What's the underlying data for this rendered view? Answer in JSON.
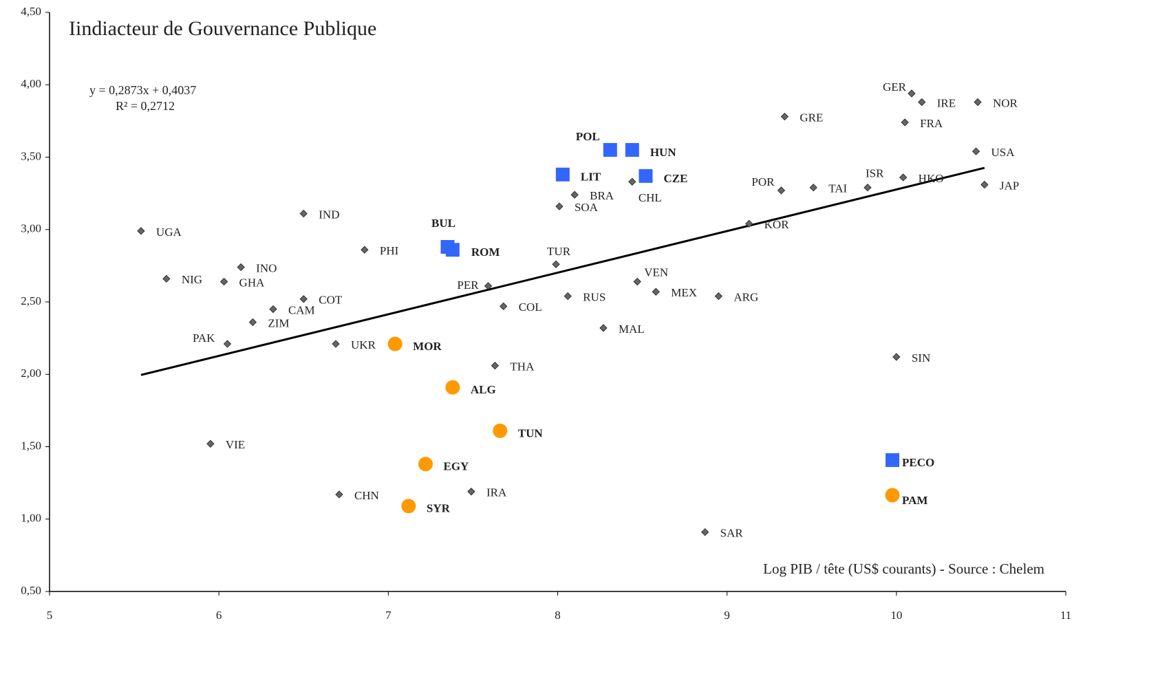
{
  "chart_data": {
    "type": "scatter",
    "title": "Iindiacteur de Gouvernance Publique",
    "x_label": "Log PIB / tête (US$ courants) - Source : Chelem",
    "annotation": [
      "y = 0,2873x + 0,4037",
      "R² = 0,2712"
    ],
    "trendline": {
      "slope": 0.2873,
      "intercept": 0.4037,
      "color": "#000000"
    },
    "xlim": [
      5,
      11
    ],
    "xticks": [
      5,
      6,
      7,
      8,
      9,
      10,
      11
    ],
    "ylim": [
      0.5,
      4.5
    ],
    "yticks": [
      {
        "value": 0.5,
        "label": "0,50"
      },
      {
        "value": 1.0,
        "label": "1,00"
      },
      {
        "value": 1.5,
        "label": "1,50"
      },
      {
        "value": 2.0,
        "label": "2,00"
      },
      {
        "value": 2.5,
        "label": "2,50"
      },
      {
        "value": 3.0,
        "label": "3,00"
      },
      {
        "value": 3.5,
        "label": "3,50"
      },
      {
        "value": 4.0,
        "label": "4,00"
      },
      {
        "value": 4.5,
        "label": "4,50"
      }
    ],
    "grid": false,
    "legend": "lower right",
    "series": [
      {
        "marker": "diamond",
        "color": "#666666",
        "labels": [
          "UGA",
          "NIG",
          "GHA",
          "INO",
          "CAM",
          "COT",
          "ZIM",
          "PAK",
          "IND",
          "PHI",
          "UKR",
          "VIE",
          "CHN",
          "IRA",
          "PER",
          "COL",
          "THA",
          "TUR",
          "SOA",
          "BRA",
          "RUS",
          "MAL",
          "CHL",
          "VEN",
          "MEX",
          "ARG",
          "SAR",
          "KOR",
          "POR",
          "GRE",
          "TAI",
          "ISR",
          "HKO",
          "GER",
          "IRE",
          "FRA",
          "NOR",
          "USA",
          "JAP",
          "SIN"
        ],
        "x": [
          5.54,
          5.69,
          6.03,
          6.13,
          6.32,
          6.5,
          6.2,
          6.05,
          6.5,
          6.86,
          6.69,
          5.95,
          6.71,
          7.49,
          7.59,
          7.68,
          7.63,
          7.99,
          8.01,
          8.1,
          8.06,
          8.27,
          8.44,
          8.47,
          8.58,
          8.95,
          8.87,
          9.13,
          9.32,
          9.34,
          9.51,
          9.83,
          10.04,
          10.09,
          10.15,
          10.05,
          10.48,
          10.47,
          10.52,
          10.0
        ],
        "values": [
          2.99,
          2.66,
          2.64,
          2.74,
          2.45,
          2.52,
          2.36,
          2.21,
          3.11,
          2.86,
          2.21,
          1.52,
          1.17,
          1.19,
          2.61,
          2.47,
          2.06,
          2.76,
          3.16,
          3.24,
          2.54,
          2.32,
          3.33,
          2.64,
          2.57,
          2.54,
          0.91,
          3.04,
          3.27,
          3.78,
          3.29,
          3.29,
          3.36,
          3.94,
          3.88,
          3.74,
          3.88,
          3.54,
          3.31,
          2.12
        ]
      },
      {
        "name": "PECO",
        "marker": "square",
        "color": "#3366ff",
        "labels": [
          "POL",
          "HUN",
          "LIT",
          "CZE",
          "BUL",
          "ROM"
        ],
        "x": [
          8.31,
          8.44,
          8.03,
          8.52,
          7.35,
          7.38
        ],
        "values": [
          3.55,
          3.55,
          3.38,
          3.37,
          2.88,
          2.86
        ]
      },
      {
        "name": "PAM",
        "marker": "circle",
        "color": "#ff9900",
        "labels": [
          "MOR",
          "ALG",
          "TUN",
          "EGY",
          "SYR"
        ],
        "x": [
          7.04,
          7.38,
          7.66,
          7.22,
          7.12
        ],
        "values": [
          2.21,
          1.91,
          1.61,
          1.38,
          1.09
        ]
      }
    ]
  }
}
